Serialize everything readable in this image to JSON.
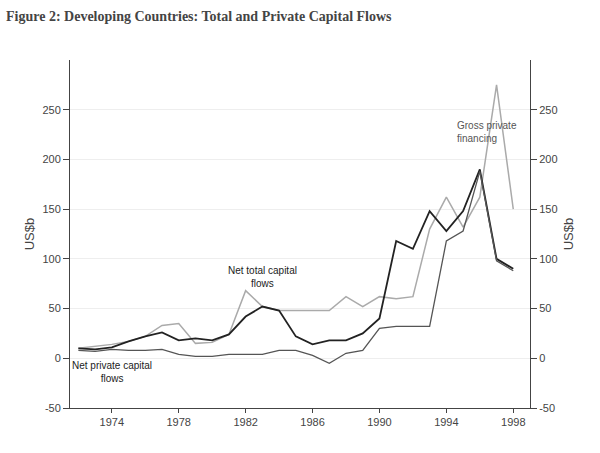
{
  "chart_data": {
    "type": "line",
    "title": "Figure 2: Developing Countries: Total and Private Capital Flows",
    "ylabel": "US$b",
    "y2label": "US$b",
    "x": [
      1972,
      1973,
      1974,
      1975,
      1976,
      1977,
      1978,
      1979,
      1980,
      1981,
      1982,
      1983,
      1984,
      1985,
      1986,
      1987,
      1988,
      1989,
      1990,
      1991,
      1992,
      1993,
      1994,
      1995,
      1996,
      1997,
      1998
    ],
    "series": [
      {
        "color": "#aaaaaa",
        "values": [
          10,
          12,
          14,
          17,
          22,
          33,
          35,
          15,
          16,
          24,
          68,
          52,
          48,
          48,
          48,
          48,
          62,
          52,
          62,
          60,
          62,
          130,
          162,
          132,
          162,
          275,
          150
        ]
      },
      {
        "color": "#222222",
        "values": [
          10,
          9,
          11,
          17,
          22,
          26,
          18,
          20,
          18,
          24,
          42,
          52,
          48,
          22,
          14,
          18,
          18,
          25,
          40,
          118,
          110,
          148,
          128,
          148,
          190,
          100,
          90
        ]
      },
      {
        "color": "#555555",
        "values": [
          8,
          7,
          9,
          8,
          8,
          9,
          4,
          2,
          2,
          4,
          4,
          4,
          8,
          8,
          3,
          -5,
          5,
          8,
          30,
          32,
          32,
          32,
          118,
          128,
          188,
          98,
          88
        ]
      }
    ],
    "xlim": [
      1971.5,
      1999
    ],
    "xticks": [
      1974,
      1978,
      1982,
      1986,
      1990,
      1994,
      1998
    ],
    "ylim": [
      -50,
      300
    ],
    "yticks": [
      -50,
      0,
      50,
      100,
      150,
      200,
      250
    ],
    "y2lim": [
      -50,
      300
    ],
    "y2ticks": [
      -50,
      0,
      50,
      100,
      150,
      200,
      250
    ],
    "grid": "y",
    "annotations": [
      {
        "text": "Net total capital\nflows",
        "x": 1983,
        "y": 68
      },
      {
        "text": "Net private capital\nflows",
        "x": 1974,
        "y": -28
      },
      {
        "text": "Gross private\nfinancing",
        "x": 1994.5,
        "y": 242
      }
    ]
  }
}
